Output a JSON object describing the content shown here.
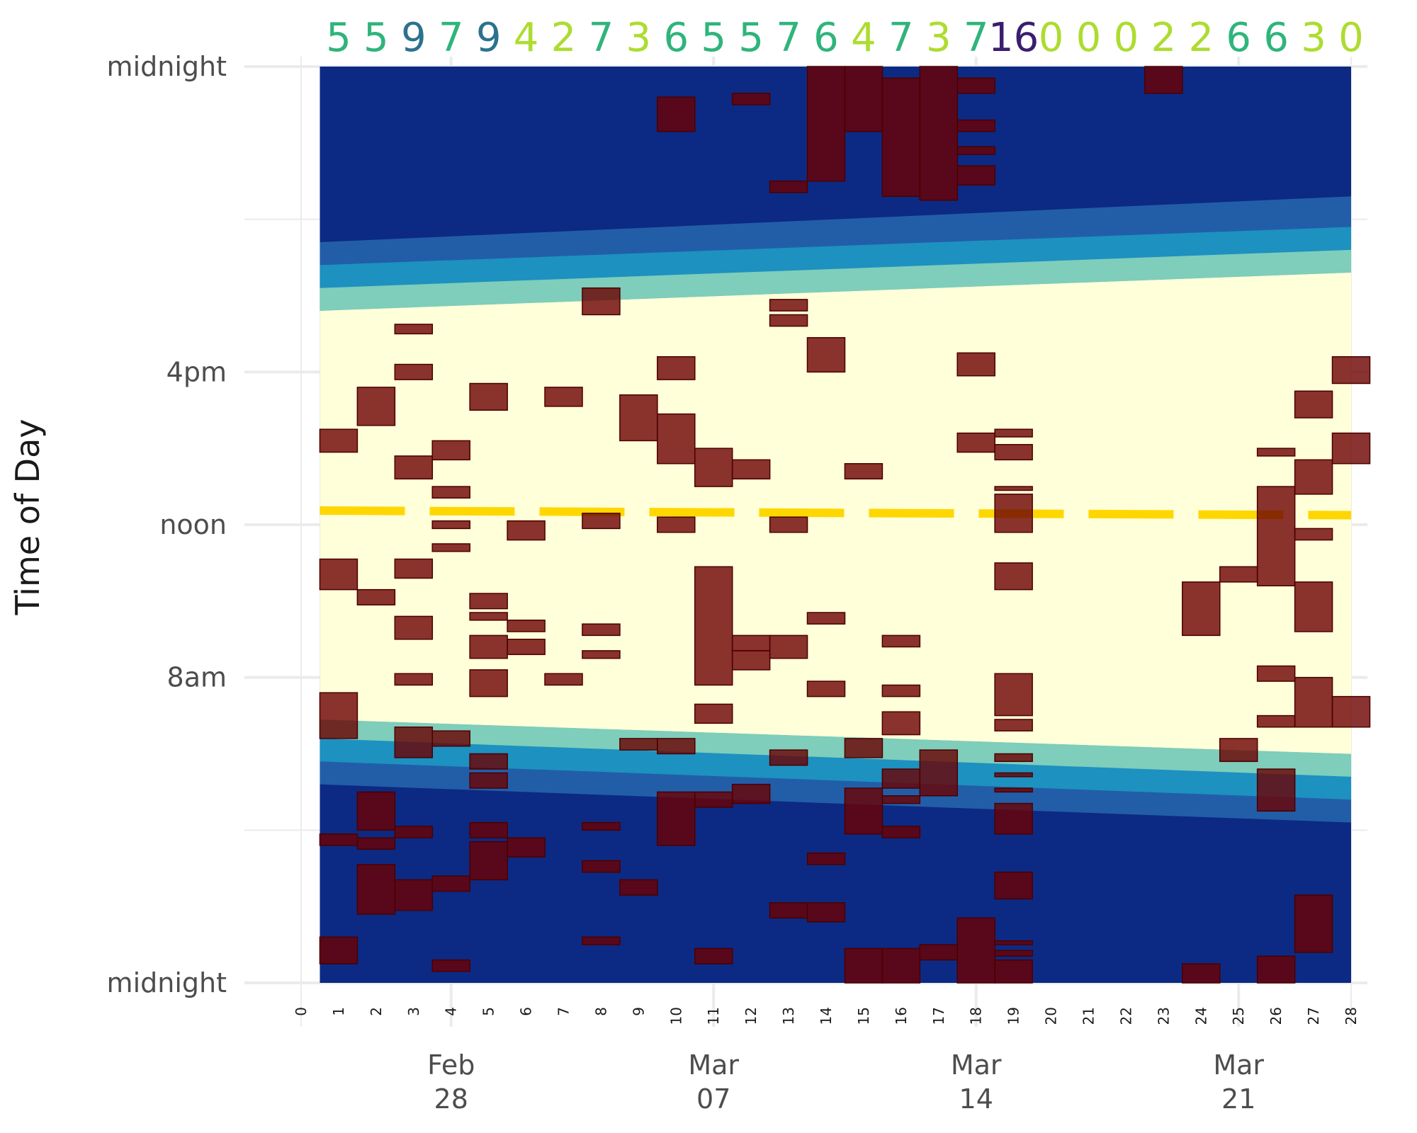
{
  "chart_data": {
    "type": "heatmap",
    "title": "",
    "xlabel": "",
    "ylabel": "Time of Day",
    "x_index_range": [
      0,
      28
    ],
    "x_index_ticks": [
      "0",
      "1",
      "2",
      "3",
      "4",
      "5",
      "6",
      "7",
      "8",
      "9",
      "10",
      "11",
      "12",
      "13",
      "14",
      "15",
      "16",
      "17",
      "18",
      "19",
      "20",
      "21",
      "22",
      "23",
      "24",
      "25",
      "26",
      "27",
      "28"
    ],
    "x_date_ticks": [
      {
        "index": 4,
        "line1": "Feb",
        "line2": "28"
      },
      {
        "index": 11,
        "line1": "Mar",
        "line2": "07"
      },
      {
        "index": 18,
        "line1": "Mar",
        "line2": "14"
      },
      {
        "index": 25,
        "line1": "Mar",
        "line2": "21"
      }
    ],
    "y_range_hours": [
      0,
      24
    ],
    "y_ticks": [
      {
        "hour": 0,
        "label": "midnight"
      },
      {
        "hour": 8,
        "label": "8am"
      },
      {
        "hour": 12,
        "label": "noon"
      },
      {
        "hour": 16,
        "label": "4pm"
      },
      {
        "hour": 24,
        "label": "midnight"
      }
    ],
    "y_minor_hours": [
      4,
      20
    ],
    "daily_counts": [
      5,
      5,
      9,
      7,
      9,
      4,
      2,
      7,
      3,
      6,
      5,
      5,
      7,
      6,
      4,
      7,
      3,
      7,
      16,
      0,
      0,
      0,
      2,
      2,
      6,
      6,
      3,
      0
    ],
    "count_colors": {
      "low": "#addc30",
      "mid": "#2fb47c",
      "high": "#2c728e",
      "max": "#3b1e6e"
    },
    "noon_line": {
      "start_hour": 12.37,
      "end_hour": 12.25,
      "color": "#ffd700"
    },
    "daylight_bands": {
      "colors": [
        "#0c2a83",
        "#225ea8",
        "#1d91c0",
        "#7fcdbb",
        "#ffffd9"
      ],
      "morning_edges_start": [
        5.2,
        5.8,
        6.4,
        6.9
      ],
      "morning_edges_end": [
        4.2,
        4.8,
        5.4,
        6.0
      ],
      "evening_edges_start": [
        17.6,
        18.2,
        18.8,
        19.4
      ],
      "evening_edges_end": [
        18.6,
        19.2,
        19.8,
        20.6
      ]
    },
    "activity_color": "#6b0000",
    "activity_blocks": [
      {
        "day": 1,
        "start": 13.9,
        "end": 14.5
      },
      {
        "day": 1,
        "start": 10.3,
        "end": 11.1
      },
      {
        "day": 1,
        "start": 6.4,
        "end": 7.6
      },
      {
        "day": 1,
        "start": 3.6,
        "end": 3.9
      },
      {
        "day": 1,
        "start": 0.5,
        "end": 1.2
      },
      {
        "day": 2,
        "start": 14.6,
        "end": 15.6
      },
      {
        "day": 2,
        "start": 9.9,
        "end": 10.3
      },
      {
        "day": 2,
        "start": 4.0,
        "end": 5.0
      },
      {
        "day": 2,
        "start": 3.5,
        "end": 3.8
      },
      {
        "day": 2,
        "start": 1.8,
        "end": 3.1
      },
      {
        "day": 3,
        "start": 17.0,
        "end": 17.25
      },
      {
        "day": 3,
        "start": 15.8,
        "end": 16.2
      },
      {
        "day": 3,
        "start": 13.2,
        "end": 13.8
      },
      {
        "day": 3,
        "start": 10.6,
        "end": 11.1
      },
      {
        "day": 3,
        "start": 9.0,
        "end": 9.6
      },
      {
        "day": 3,
        "start": 7.8,
        "end": 8.1
      },
      {
        "day": 3,
        "start": 5.9,
        "end": 6.7
      },
      {
        "day": 3,
        "start": 3.8,
        "end": 4.1
      },
      {
        "day": 3,
        "start": 1.9,
        "end": 2.7
      },
      {
        "day": 4,
        "start": 13.7,
        "end": 14.2
      },
      {
        "day": 4,
        "start": 12.7,
        "end": 13.0
      },
      {
        "day": 4,
        "start": 11.9,
        "end": 12.1
      },
      {
        "day": 4,
        "start": 11.3,
        "end": 11.5
      },
      {
        "day": 4,
        "start": 6.2,
        "end": 6.6
      },
      {
        "day": 4,
        "start": 2.4,
        "end": 2.8
      },
      {
        "day": 4,
        "start": 0.3,
        "end": 0.6
      },
      {
        "day": 5,
        "start": 15.0,
        "end": 15.7
      },
      {
        "day": 5,
        "start": 9.8,
        "end": 10.2
      },
      {
        "day": 5,
        "start": 9.5,
        "end": 9.7
      },
      {
        "day": 5,
        "start": 8.5,
        "end": 9.1
      },
      {
        "day": 5,
        "start": 7.5,
        "end": 8.2
      },
      {
        "day": 5,
        "start": 5.6,
        "end": 6.0
      },
      {
        "day": 5,
        "start": 5.1,
        "end": 5.5
      },
      {
        "day": 5,
        "start": 3.8,
        "end": 4.2
      },
      {
        "day": 5,
        "start": 2.7,
        "end": 3.7
      },
      {
        "day": 6,
        "start": 11.6,
        "end": 12.1
      },
      {
        "day": 6,
        "start": 9.2,
        "end": 9.5
      },
      {
        "day": 6,
        "start": 8.6,
        "end": 9.0
      },
      {
        "day": 6,
        "start": 3.3,
        "end": 3.8
      },
      {
        "day": 7,
        "start": 15.1,
        "end": 15.6
      },
      {
        "day": 7,
        "start": 7.8,
        "end": 8.1
      },
      {
        "day": 8,
        "start": 17.5,
        "end": 18.2
      },
      {
        "day": 8,
        "start": 11.9,
        "end": 12.3
      },
      {
        "day": 8,
        "start": 9.1,
        "end": 9.4
      },
      {
        "day": 8,
        "start": 8.5,
        "end": 8.7
      },
      {
        "day": 8,
        "start": 4.0,
        "end": 4.2
      },
      {
        "day": 8,
        "start": 2.9,
        "end": 3.2
      },
      {
        "day": 8,
        "start": 1.0,
        "end": 1.2
      },
      {
        "day": 9,
        "start": 14.2,
        "end": 15.4
      },
      {
        "day": 9,
        "start": 6.1,
        "end": 6.4
      },
      {
        "day": 9,
        "start": 2.3,
        "end": 2.7
      },
      {
        "day": 10,
        "start": 22.3,
        "end": 23.2
      },
      {
        "day": 10,
        "start": 15.8,
        "end": 16.4
      },
      {
        "day": 10,
        "start": 13.6,
        "end": 14.9
      },
      {
        "day": 10,
        "start": 11.8,
        "end": 12.2
      },
      {
        "day": 10,
        "start": 6.0,
        "end": 6.4
      },
      {
        "day": 10,
        "start": 3.6,
        "end": 5.0
      },
      {
        "day": 11,
        "start": 13.0,
        "end": 14.0
      },
      {
        "day": 11,
        "start": 7.8,
        "end": 10.9
      },
      {
        "day": 11,
        "start": 6.8,
        "end": 7.3
      },
      {
        "day": 11,
        "start": 4.6,
        "end": 5.0
      },
      {
        "day": 11,
        "start": 0.5,
        "end": 0.9
      },
      {
        "day": 12,
        "start": 23.0,
        "end": 23.3
      },
      {
        "day": 12,
        "start": 13.2,
        "end": 13.7
      },
      {
        "day": 12,
        "start": 8.7,
        "end": 9.1
      },
      {
        "day": 12,
        "start": 8.2,
        "end": 8.7
      },
      {
        "day": 12,
        "start": 4.7,
        "end": 5.2
      },
      {
        "day": 13,
        "start": 20.7,
        "end": 21.0
      },
      {
        "day": 13,
        "start": 17.6,
        "end": 17.9
      },
      {
        "day": 13,
        "start": 17.2,
        "end": 17.5
      },
      {
        "day": 13,
        "start": 11.8,
        "end": 12.2
      },
      {
        "day": 13,
        "start": 8.5,
        "end": 9.1
      },
      {
        "day": 13,
        "start": 5.7,
        "end": 6.1
      },
      {
        "day": 13,
        "start": 1.7,
        "end": 2.1
      },
      {
        "day": 14,
        "start": 21.0,
        "end": 24.0
      },
      {
        "day": 14,
        "start": 16.0,
        "end": 16.9
      },
      {
        "day": 14,
        "start": 9.4,
        "end": 9.7
      },
      {
        "day": 14,
        "start": 7.5,
        "end": 7.9
      },
      {
        "day": 14,
        "start": 3.1,
        "end": 3.4
      },
      {
        "day": 14,
        "start": 1.6,
        "end": 2.1
      },
      {
        "day": 15,
        "start": 22.3,
        "end": 24.0
      },
      {
        "day": 15,
        "start": 13.2,
        "end": 13.6
      },
      {
        "day": 15,
        "start": 5.9,
        "end": 6.4
      },
      {
        "day": 15,
        "start": 3.9,
        "end": 5.1
      },
      {
        "day": 15,
        "start": 0.0,
        "end": 0.9
      },
      {
        "day": 16,
        "start": 20.6,
        "end": 23.7
      },
      {
        "day": 16,
        "start": 8.8,
        "end": 9.1
      },
      {
        "day": 16,
        "start": 7.5,
        "end": 7.8
      },
      {
        "day": 16,
        "start": 6.5,
        "end": 7.1
      },
      {
        "day": 16,
        "start": 5.1,
        "end": 5.6
      },
      {
        "day": 16,
        "start": 4.7,
        "end": 4.9
      },
      {
        "day": 16,
        "start": 3.8,
        "end": 4.1
      },
      {
        "day": 16,
        "start": 0.0,
        "end": 0.9
      },
      {
        "day": 17,
        "start": 20.5,
        "end": 24.0
      },
      {
        "day": 17,
        "start": 4.9,
        "end": 6.1
      },
      {
        "day": 17,
        "start": 0.6,
        "end": 1.0
      },
      {
        "day": 18,
        "start": 23.3,
        "end": 23.7
      },
      {
        "day": 18,
        "start": 22.3,
        "end": 22.6
      },
      {
        "day": 18,
        "start": 21.7,
        "end": 21.9
      },
      {
        "day": 18,
        "start": 20.9,
        "end": 21.4
      },
      {
        "day": 18,
        "start": 15.9,
        "end": 16.5
      },
      {
        "day": 18,
        "start": 13.9,
        "end": 14.4
      },
      {
        "day": 18,
        "start": 0.0,
        "end": 1.7
      },
      {
        "day": 19,
        "start": 14.3,
        "end": 14.5
      },
      {
        "day": 19,
        "start": 13.7,
        "end": 14.1
      },
      {
        "day": 19,
        "start": 12.9,
        "end": 13.0
      },
      {
        "day": 19,
        "start": 11.8,
        "end": 12.8
      },
      {
        "day": 19,
        "start": 10.3,
        "end": 11.0
      },
      {
        "day": 19,
        "start": 7.0,
        "end": 8.1
      },
      {
        "day": 19,
        "start": 6.6,
        "end": 6.9
      },
      {
        "day": 19,
        "start": 5.8,
        "end": 6.0
      },
      {
        "day": 19,
        "start": 5.4,
        "end": 5.5
      },
      {
        "day": 19,
        "start": 5.0,
        "end": 5.1
      },
      {
        "day": 19,
        "start": 3.9,
        "end": 4.7
      },
      {
        "day": 19,
        "start": 2.2,
        "end": 2.9
      },
      {
        "day": 19,
        "start": 1.0,
        "end": 1.1
      },
      {
        "day": 19,
        "start": 0.7,
        "end": 0.85
      },
      {
        "day": 19,
        "start": 0.0,
        "end": 0.6
      },
      {
        "day": 23,
        "start": 23.3,
        "end": 24.0
      },
      {
        "day": 24,
        "start": 9.1,
        "end": 10.5
      },
      {
        "day": 24,
        "start": 0.0,
        "end": 0.5
      },
      {
        "day": 25,
        "start": 10.5,
        "end": 10.9
      },
      {
        "day": 25,
        "start": 5.8,
        "end": 6.4
      },
      {
        "day": 26,
        "start": 13.8,
        "end": 14.0
      },
      {
        "day": 26,
        "start": 10.4,
        "end": 13.0
      },
      {
        "day": 26,
        "start": 7.9,
        "end": 8.3
      },
      {
        "day": 26,
        "start": 6.7,
        "end": 7.0
      },
      {
        "day": 26,
        "start": 4.5,
        "end": 5.6
      },
      {
        "day": 26,
        "start": 0.0,
        "end": 0.7
      },
      {
        "day": 27,
        "start": 14.8,
        "end": 15.5
      },
      {
        "day": 27,
        "start": 12.8,
        "end": 13.7
      },
      {
        "day": 27,
        "start": 11.6,
        "end": 11.9
      },
      {
        "day": 27,
        "start": 9.2,
        "end": 10.5
      },
      {
        "day": 27,
        "start": 6.7,
        "end": 8.0
      },
      {
        "day": 27,
        "start": 0.8,
        "end": 2.3
      },
      {
        "day": 28,
        "start": 15.7,
        "end": 16.4
      },
      {
        "day": 28,
        "start": 13.6,
        "end": 14.4
      },
      {
        "day": 28,
        "start": 6.7,
        "end": 7.5
      }
    ]
  }
}
